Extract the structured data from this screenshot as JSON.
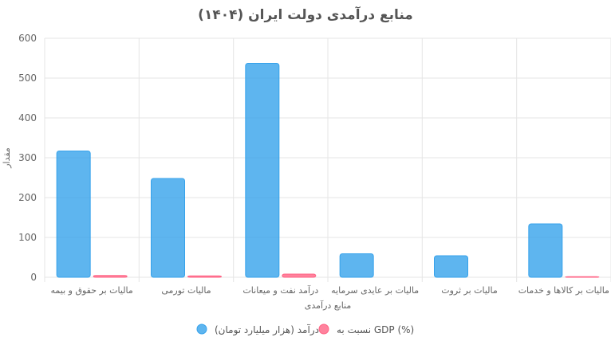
{
  "chart_data": {
    "type": "bar",
    "title": "منابع درآمدی دولت ایران (۱۴۰۴)",
    "xlabel": "منابع درآمدی",
    "ylabel": "مقدار",
    "ylim": [
      0,
      600
    ],
    "yticks": [
      0,
      100,
      200,
      300,
      400,
      500,
      600
    ],
    "grid": true,
    "legend_position": "bottom",
    "categories": [
      "مالیات بر حقوق و بیمه",
      "مالیات تورمی",
      "درآمد نفت و میعانات",
      "مالیات بر عایدی سرمایه",
      "مالیات بر ثروت",
      "مالیات بر کالاها و خدمات"
    ],
    "series": [
      {
        "name": "درآمد (هزار میلیارد تومان)",
        "color": "#36a2eb",
        "values": [
          317,
          248,
          537,
          59,
          54,
          134
        ]
      },
      {
        "name": "نسبت به GDP (%)",
        "color": "#ff6384",
        "values": [
          4.5,
          3.5,
          8,
          0,
          0,
          1.5
        ]
      }
    ]
  }
}
